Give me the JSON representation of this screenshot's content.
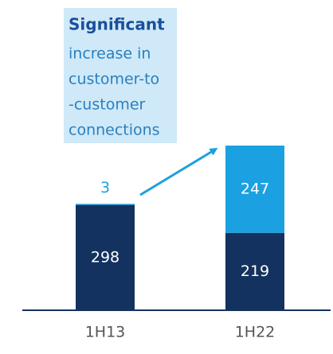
{
  "chart_data": {
    "type": "stacked_bar",
    "annotation": [
      "Significant",
      "increase in",
      "customer-to",
      "-customer",
      "connections"
    ],
    "categories": [
      "1H13",
      "1H22"
    ],
    "series": [
      {
        "color": "#13325f",
        "values": [
          298,
          219
        ]
      },
      {
        "color": "#1ba1e2",
        "values": [
          3,
          247
        ]
      }
    ]
  }
}
